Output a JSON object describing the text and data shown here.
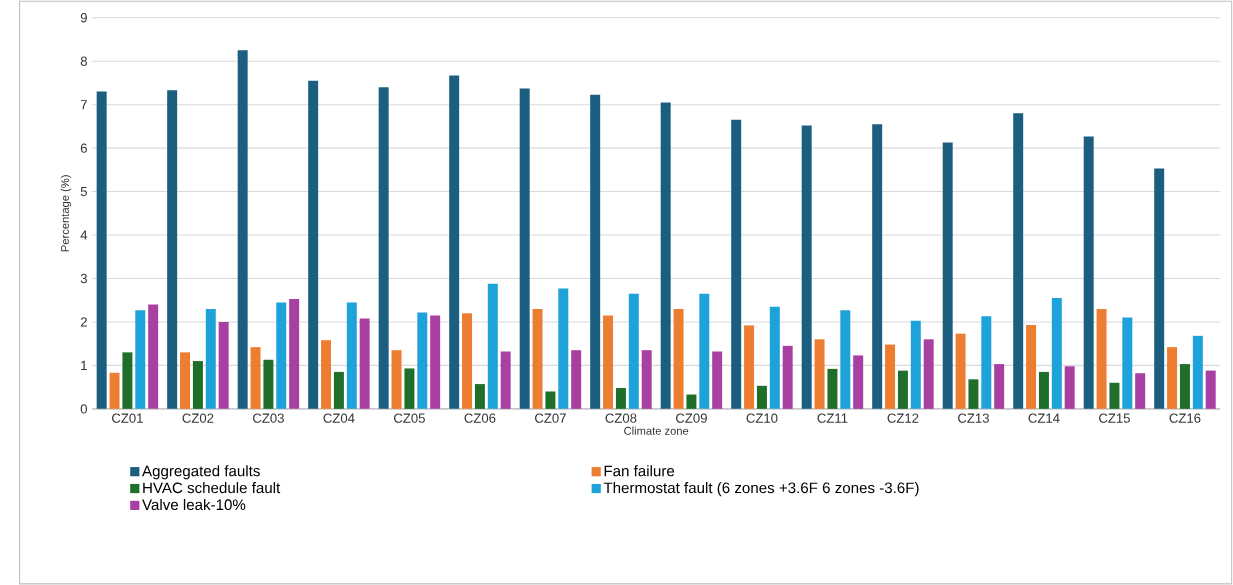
{
  "chart_data": {
    "type": "bar",
    "xlabel": "Climate zone",
    "ylabel": "Percentage (%)",
    "categories": [
      "CZ01",
      "CZ02",
      "CZ03",
      "CZ04",
      "CZ05",
      "CZ06",
      "CZ07",
      "CZ08",
      "CZ09",
      "CZ10",
      "CZ11",
      "CZ12",
      "CZ13",
      "CZ14",
      "CZ15",
      "CZ16"
    ],
    "series": [
      {
        "name": "Aggregated faults",
        "color": "#1b5e80",
        "values": [
          7.3,
          7.33,
          8.25,
          7.55,
          7.4,
          7.67,
          7.37,
          7.23,
          7.05,
          6.65,
          6.52,
          6.55,
          6.13,
          6.8,
          6.27,
          5.53
        ]
      },
      {
        "name": "Fan failure",
        "color": "#ed7d31",
        "values": [
          0.83,
          1.3,
          1.42,
          1.58,
          1.35,
          2.2,
          2.3,
          2.15,
          2.3,
          1.92,
          1.6,
          1.48,
          1.73,
          1.93,
          2.3,
          1.42
        ]
      },
      {
        "name": "HVAC schedule fault",
        "color": "#1f6e2a",
        "values": [
          1.3,
          1.1,
          1.13,
          0.85,
          0.93,
          0.57,
          0.4,
          0.48,
          0.33,
          0.53,
          0.92,
          0.88,
          0.68,
          0.85,
          0.6,
          1.03
        ]
      },
      {
        "name": "Thermostat fault (6 zones +3.6F 6 zones -3.6F)",
        "color": "#1ea2da",
        "values": [
          2.27,
          2.3,
          2.45,
          2.45,
          2.22,
          2.88,
          2.77,
          2.65,
          2.65,
          2.35,
          2.27,
          2.03,
          2.13,
          2.55,
          2.1,
          1.68
        ]
      },
      {
        "name": "Valve leak-10%",
        "color": "#a83fa2",
        "values": [
          2.4,
          2.0,
          2.53,
          2.08,
          2.15,
          1.32,
          1.35,
          1.35,
          1.32,
          1.45,
          1.23,
          1.6,
          1.03,
          0.98,
          0.82,
          0.88
        ]
      }
    ],
    "ylim": [
      0,
      9
    ],
    "yticks": [
      0,
      1,
      2,
      3,
      4,
      5,
      6,
      7,
      8,
      9
    ],
    "grid": "y",
    "legend": "bottom"
  }
}
